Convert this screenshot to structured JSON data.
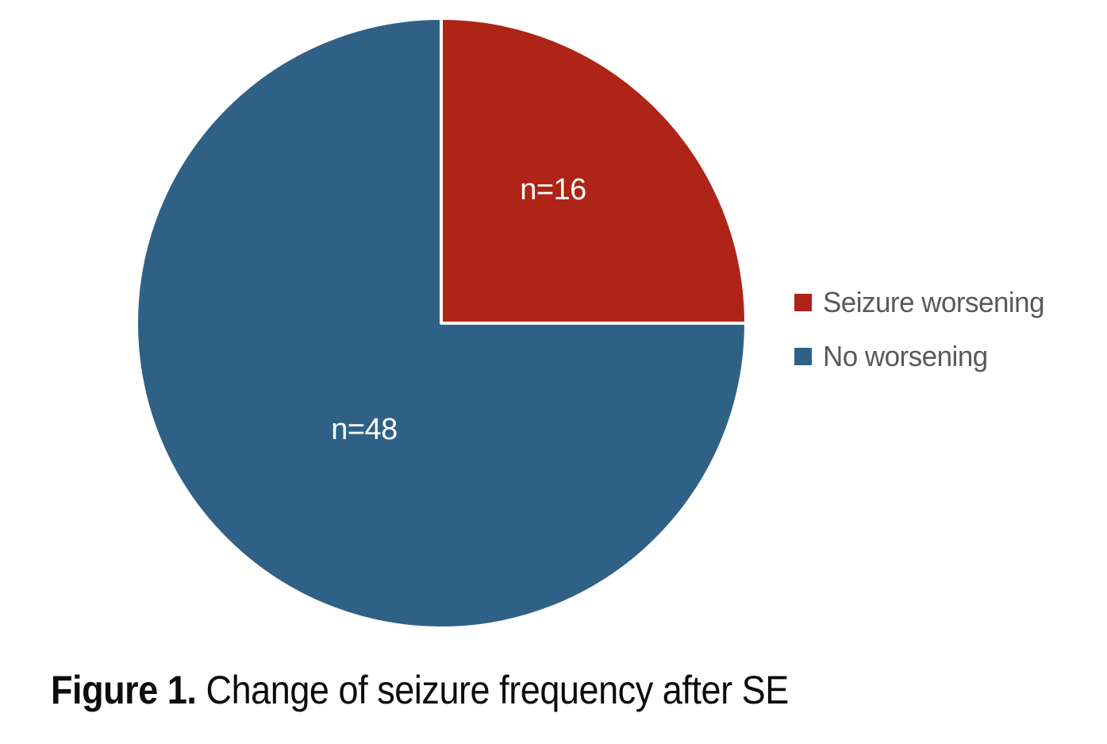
{
  "page": {
    "background": "#ffffff"
  },
  "chart_data": {
    "type": "pie",
    "title": "",
    "total": 64,
    "start_angle_deg": 0,
    "direction": "clockwise",
    "legend_position": "right",
    "data_label_color": "#ffffff",
    "legend_text_color": "#595959",
    "slice_border_color": "#ffffff",
    "slices": [
      {
        "label": "Seizure worsening",
        "value": 16,
        "data_label": "n=16",
        "color": "#ae2417"
      },
      {
        "label": "No worsening",
        "value": 48,
        "data_label": "n=48",
        "color": "#2f6186"
      }
    ]
  },
  "caption": {
    "bold": "Figure 1.",
    "regular": "Change of seizure frequency after SE"
  }
}
